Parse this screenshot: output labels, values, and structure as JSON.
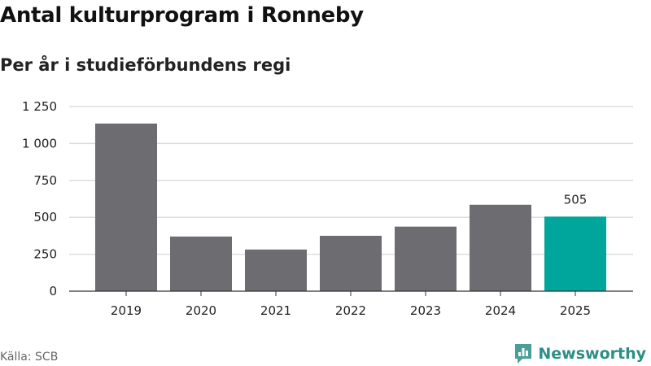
{
  "title": "Antal kulturprogram i Ronneby",
  "subtitle": "Per år i studieförbundens regi",
  "source": "Källa: SCB",
  "brand": {
    "name": "Newsworthy",
    "icon": "newsworthy-logo-icon"
  },
  "colors": {
    "bar": "#6d6c71",
    "highlight": "#00a59b",
    "grid": "#dddddd",
    "axis": "#333333",
    "brand": "#2a8f86"
  },
  "chart_data": {
    "type": "bar",
    "title": "Antal kulturprogram i Ronneby",
    "subtitle": "Per år i studieförbundens regi",
    "categories": [
      "2019",
      "2020",
      "2021",
      "2022",
      "2023",
      "2024",
      "2025"
    ],
    "values": [
      1135,
      370,
      282,
      375,
      437,
      585,
      505
    ],
    "highlight_index": 6,
    "data_labels": [
      {
        "index": 6,
        "text": "505"
      }
    ],
    "y_ticks": [
      0,
      250,
      500,
      750,
      1000,
      1250
    ],
    "y_tick_labels": [
      "0",
      "250",
      "500",
      "750",
      "1 000",
      "1 250"
    ],
    "ylim": [
      0,
      1250
    ],
    "grid": true,
    "xlabel": "",
    "ylabel": ""
  }
}
